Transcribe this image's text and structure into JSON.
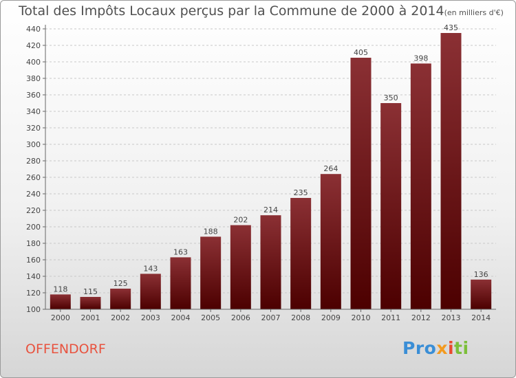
{
  "header": {
    "title": "Total des Impôts Locaux perçus par la Commune de 2000 à 2014",
    "subtitle": "(en milliers d'€)"
  },
  "footer": {
    "commune": "OFFENDORF",
    "logo_parts": [
      "Pro",
      "x",
      "i",
      "ti"
    ]
  },
  "colors": {
    "bar_top": "#8b3034",
    "bar_bottom": "#4c0000",
    "grid": "#c8c8c8",
    "commune_text": "#e8533f"
  },
  "chart_data": {
    "type": "bar",
    "title": "Total des Impôts Locaux perçus par la Commune de 2000 à 2014",
    "subtitle": "(en milliers d'€)",
    "categories": [
      "2000",
      "2001",
      "2002",
      "2003",
      "2004",
      "2005",
      "2006",
      "2007",
      "2008",
      "2009",
      "2010",
      "2011",
      "2012",
      "2013",
      "2014"
    ],
    "values": [
      118,
      115,
      125,
      143,
      163,
      188,
      202,
      214,
      235,
      264,
      405,
      350,
      398,
      435,
      136
    ],
    "ylim": [
      100,
      440
    ],
    "yticks": [
      100,
      120,
      140,
      160,
      180,
      200,
      220,
      240,
      260,
      280,
      300,
      320,
      340,
      360,
      380,
      400,
      420,
      440
    ],
    "grid": true,
    "xlabel": "",
    "ylabel": ""
  }
}
